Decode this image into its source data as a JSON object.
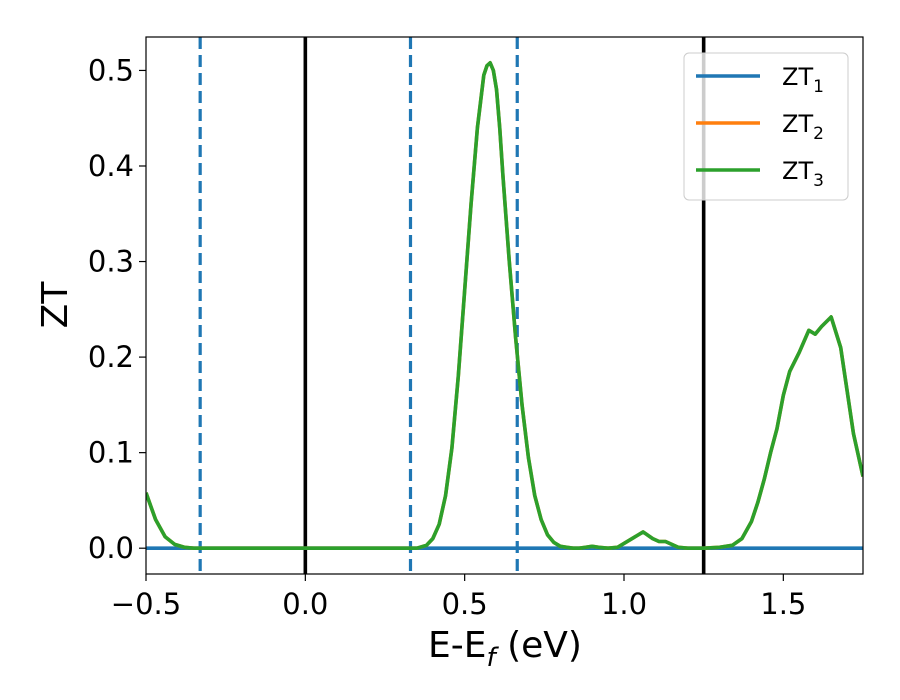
{
  "chart_data": {
    "type": "line",
    "xlabel_main": "E-E",
    "xlabel_sub": "f",
    "xlabel_tail": " (eV)",
    "ylabel": "ZT",
    "xlim": [
      -0.5,
      1.75
    ],
    "ylim": [
      -0.027,
      0.535
    ],
    "grid": false,
    "legend_position": "top-right",
    "xticks": [
      {
        "value": -0.5,
        "label": "−0.5"
      },
      {
        "value": 0.0,
        "label": "0.0"
      },
      {
        "value": 0.5,
        "label": "0.5"
      },
      {
        "value": 1.0,
        "label": "1.0"
      },
      {
        "value": 1.5,
        "label": "1.5"
      }
    ],
    "yticks": [
      {
        "value": 0.0,
        "label": "0.0"
      },
      {
        "value": 0.1,
        "label": "0.1"
      },
      {
        "value": 0.2,
        "label": "0.2"
      },
      {
        "value": 0.3,
        "label": "0.3"
      },
      {
        "value": 0.4,
        "label": "0.4"
      },
      {
        "value": 0.5,
        "label": "0.5"
      }
    ],
    "vertical_lines": [
      {
        "x": -0.33,
        "style": "dashed",
        "color": "#1f77b4"
      },
      {
        "x": 0.0,
        "style": "solid",
        "color": "#000000"
      },
      {
        "x": 0.33,
        "style": "dashed",
        "color": "#1f77b4"
      },
      {
        "x": 0.665,
        "style": "dashed",
        "color": "#1f77b4"
      },
      {
        "x": 1.25,
        "style": "solid",
        "color": "#000000"
      }
    ],
    "series": [
      {
        "name": "ZT",
        "name_sub": "1",
        "color": "#1f77b4",
        "x": [
          -0.5,
          1.75
        ],
        "y": [
          0.0,
          0.0
        ]
      },
      {
        "name": "ZT",
        "name_sub": "2",
        "color": "#ff7f0e",
        "x": [
          -0.5,
          -0.47,
          -0.44,
          -0.41,
          -0.38,
          -0.35,
          -0.3,
          -0.2,
          0.0,
          0.2,
          0.3,
          0.35,
          0.38,
          0.4,
          0.42,
          0.44,
          0.46,
          0.48,
          0.5,
          0.52,
          0.54,
          0.56,
          0.57,
          0.58,
          0.59,
          0.6,
          0.61,
          0.62,
          0.64,
          0.66,
          0.68,
          0.7,
          0.72,
          0.74,
          0.76,
          0.78,
          0.8,
          0.82,
          0.84,
          0.86,
          0.88,
          0.9,
          0.92,
          0.95,
          0.98,
          1.0,
          1.03,
          1.06,
          1.09,
          1.11,
          1.13,
          1.15,
          1.17,
          1.2,
          1.25,
          1.3,
          1.34,
          1.37,
          1.4,
          1.42,
          1.44,
          1.46,
          1.48,
          1.5,
          1.52,
          1.55,
          1.58,
          1.6,
          1.62,
          1.65,
          1.68,
          1.7,
          1.72,
          1.75
        ],
        "y": [
          0.058,
          0.03,
          0.012,
          0.004,
          0.001,
          0.0,
          0.0,
          0.0,
          0.0,
          0.0,
          0.0,
          0.0,
          0.003,
          0.01,
          0.025,
          0.055,
          0.105,
          0.18,
          0.27,
          0.36,
          0.44,
          0.495,
          0.505,
          0.508,
          0.5,
          0.48,
          0.44,
          0.39,
          0.3,
          0.22,
          0.15,
          0.095,
          0.055,
          0.03,
          0.014,
          0.006,
          0.002,
          0.001,
          0.0,
          0.0,
          0.001,
          0.002,
          0.001,
          0.0,
          0.001,
          0.005,
          0.011,
          0.017,
          0.01,
          0.007,
          0.007,
          0.004,
          0.001,
          0.0,
          0.0,
          0.001,
          0.003,
          0.01,
          0.028,
          0.048,
          0.072,
          0.1,
          0.125,
          0.16,
          0.185,
          0.205,
          0.228,
          0.224,
          0.232,
          0.242,
          0.21,
          0.165,
          0.12,
          0.075
        ]
      },
      {
        "name": "ZT",
        "name_sub": "3",
        "color": "#2ca02c",
        "x": [
          -0.5,
          -0.47,
          -0.44,
          -0.41,
          -0.38,
          -0.35,
          -0.3,
          -0.2,
          0.0,
          0.2,
          0.3,
          0.35,
          0.38,
          0.4,
          0.42,
          0.44,
          0.46,
          0.48,
          0.5,
          0.52,
          0.54,
          0.56,
          0.57,
          0.58,
          0.59,
          0.6,
          0.61,
          0.62,
          0.64,
          0.66,
          0.68,
          0.7,
          0.72,
          0.74,
          0.76,
          0.78,
          0.8,
          0.82,
          0.84,
          0.86,
          0.88,
          0.9,
          0.92,
          0.95,
          0.98,
          1.0,
          1.03,
          1.06,
          1.09,
          1.11,
          1.13,
          1.15,
          1.17,
          1.2,
          1.25,
          1.3,
          1.34,
          1.37,
          1.4,
          1.42,
          1.44,
          1.46,
          1.48,
          1.5,
          1.52,
          1.55,
          1.58,
          1.6,
          1.62,
          1.65,
          1.68,
          1.7,
          1.72,
          1.75
        ],
        "y": [
          0.058,
          0.03,
          0.012,
          0.004,
          0.001,
          0.0,
          0.0,
          0.0,
          0.0,
          0.0,
          0.0,
          0.0,
          0.003,
          0.01,
          0.025,
          0.055,
          0.105,
          0.18,
          0.27,
          0.36,
          0.44,
          0.495,
          0.505,
          0.508,
          0.5,
          0.48,
          0.44,
          0.39,
          0.3,
          0.22,
          0.15,
          0.095,
          0.055,
          0.03,
          0.014,
          0.006,
          0.002,
          0.001,
          0.0,
          0.0,
          0.001,
          0.002,
          0.001,
          0.0,
          0.001,
          0.005,
          0.011,
          0.017,
          0.01,
          0.007,
          0.007,
          0.004,
          0.001,
          0.0,
          0.0,
          0.001,
          0.003,
          0.01,
          0.028,
          0.048,
          0.072,
          0.1,
          0.125,
          0.16,
          0.185,
          0.205,
          0.228,
          0.224,
          0.232,
          0.242,
          0.21,
          0.165,
          0.12,
          0.075
        ]
      }
    ]
  }
}
